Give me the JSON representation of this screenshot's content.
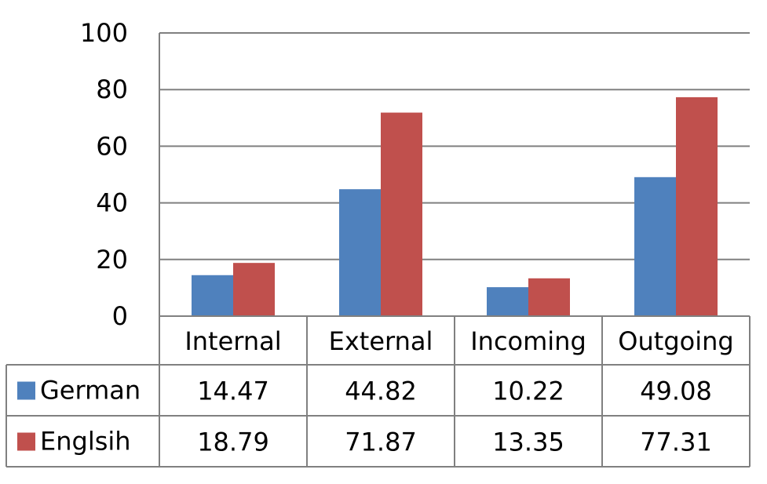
{
  "chart_data": {
    "type": "bar",
    "categories": [
      "Internal",
      "External",
      "Incoming",
      "Outgoing"
    ],
    "series": [
      {
        "name": "German",
        "values": [
          14.47,
          44.82,
          10.22,
          49.08
        ],
        "labels": [
          "14.47",
          "44.82",
          "10.22",
          "49.08"
        ],
        "color": "#4f81bd"
      },
      {
        "name": "Englsih",
        "values": [
          18.79,
          71.87,
          13.35,
          77.31
        ],
        "labels": [
          "18.79",
          "71.87",
          "13.35",
          "77.31"
        ],
        "color": "#c0504d"
      }
    ],
    "ylim": [
      0,
      100
    ],
    "yticks": [
      0,
      20,
      40,
      60,
      80,
      100
    ],
    "ytick_labels": [
      "0",
      "20",
      "40",
      "60",
      "80",
      "100"
    ],
    "grid": true,
    "legend": "data-table",
    "data_table": true
  }
}
